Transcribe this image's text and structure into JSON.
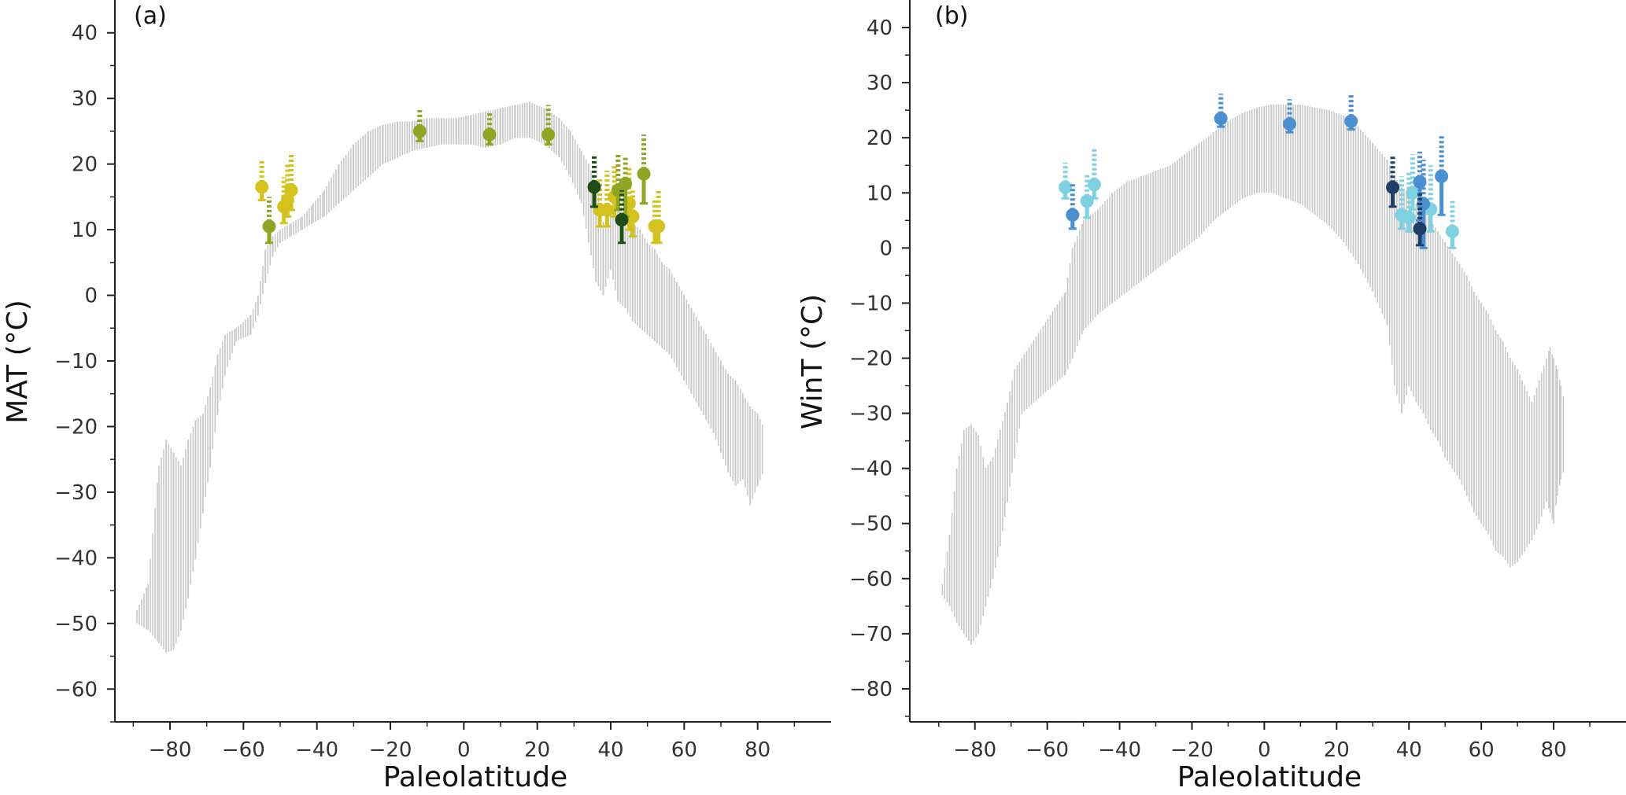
{
  "chart_data": [
    {
      "panel": "(a)",
      "type": "scatter",
      "xlabel": "Paleolatitude",
      "ylabel": "MAT (°C)",
      "xlim": [
        -95,
        100
      ],
      "ylim": [
        -65,
        45
      ],
      "xticks": [
        -80,
        -60,
        -40,
        -20,
        0,
        20,
        40,
        60,
        80
      ],
      "yticks": [
        40,
        30,
        20,
        10,
        0,
        -10,
        -20,
        -30,
        -40,
        -50,
        -60
      ],
      "xtick_labels": [
        "−80",
        "−60",
        "−40",
        "−20",
        "0",
        "20",
        "40",
        "60",
        "80"
      ],
      "ytick_labels": [
        "40",
        "30",
        "20",
        "10",
        "0",
        "−10",
        "−20",
        "−30",
        "−40",
        "−50",
        "−60"
      ],
      "grid": false,
      "model_envelope_color": "#c8c8c8",
      "model_envelope": [
        {
          "x": -89,
          "lo": -50,
          "hi": -48
        },
        {
          "x": -86,
          "lo": -51,
          "hi": -44
        },
        {
          "x": -83,
          "lo": -53,
          "hi": -26
        },
        {
          "x": -81,
          "lo": -54.5,
          "hi": -22
        },
        {
          "x": -79,
          "lo": -54,
          "hi": -24
        },
        {
          "x": -77,
          "lo": -51,
          "hi": -26
        },
        {
          "x": -75,
          "lo": -46,
          "hi": -22
        },
        {
          "x": -73,
          "lo": -40,
          "hi": -19
        },
        {
          "x": -71,
          "lo": -33,
          "hi": -18
        },
        {
          "x": -69,
          "lo": -26,
          "hi": -14
        },
        {
          "x": -67,
          "lo": -18,
          "hi": -9
        },
        {
          "x": -65,
          "lo": -12,
          "hi": -6
        },
        {
          "x": -62,
          "lo": -7,
          "hi": -5
        },
        {
          "x": -58,
          "lo": -6,
          "hi": -3
        },
        {
          "x": -56,
          "lo": -3,
          "hi": 0
        },
        {
          "x": -54,
          "lo": 2,
          "hi": 7
        },
        {
          "x": -52,
          "lo": 6,
          "hi": 9
        },
        {
          "x": -50,
          "lo": 8,
          "hi": 10
        },
        {
          "x": -47,
          "lo": 9,
          "hi": 11
        },
        {
          "x": -44,
          "lo": 10,
          "hi": 12
        },
        {
          "x": -41,
          "lo": 11,
          "hi": 14
        },
        {
          "x": -38,
          "lo": 12,
          "hi": 16
        },
        {
          "x": -34,
          "lo": 14,
          "hi": 20
        },
        {
          "x": -30,
          "lo": 16,
          "hi": 23
        },
        {
          "x": -26,
          "lo": 18,
          "hi": 25
        },
        {
          "x": -22,
          "lo": 20,
          "hi": 26
        },
        {
          "x": -18,
          "lo": 21,
          "hi": 26.5
        },
        {
          "x": -14,
          "lo": 22,
          "hi": 26.5
        },
        {
          "x": -10,
          "lo": 22.5,
          "hi": 27
        },
        {
          "x": -6,
          "lo": 23,
          "hi": 27
        },
        {
          "x": -2,
          "lo": 23,
          "hi": 27
        },
        {
          "x": 2,
          "lo": 23,
          "hi": 27.5
        },
        {
          "x": 6,
          "lo": 22.5,
          "hi": 28
        },
        {
          "x": 10,
          "lo": 23,
          "hi": 28.5
        },
        {
          "x": 14,
          "lo": 24,
          "hi": 29
        },
        {
          "x": 18,
          "lo": 24,
          "hi": 29.5
        },
        {
          "x": 22,
          "lo": 23,
          "hi": 28.5
        },
        {
          "x": 26,
          "lo": 21,
          "hi": 27
        },
        {
          "x": 29,
          "lo": 18,
          "hi": 25
        },
        {
          "x": 32,
          "lo": 14,
          "hi": 22
        },
        {
          "x": 34,
          "lo": 8,
          "hi": 20
        },
        {
          "x": 36,
          "lo": 2,
          "hi": 17
        },
        {
          "x": 38,
          "lo": 0,
          "hi": 11
        },
        {
          "x": 40,
          "lo": 4,
          "hi": 13
        },
        {
          "x": 42,
          "lo": -1,
          "hi": 13
        },
        {
          "x": 44,
          "lo": -2,
          "hi": 12
        },
        {
          "x": 46,
          "lo": -4,
          "hi": 11
        },
        {
          "x": 48,
          "lo": -5,
          "hi": 10
        },
        {
          "x": 50,
          "lo": -6,
          "hi": 8
        },
        {
          "x": 52,
          "lo": -7,
          "hi": 7
        },
        {
          "x": 54,
          "lo": -8,
          "hi": 5
        },
        {
          "x": 56,
          "lo": -9,
          "hi": 4
        },
        {
          "x": 58,
          "lo": -11,
          "hi": 2
        },
        {
          "x": 60,
          "lo": -13,
          "hi": 0
        },
        {
          "x": 62,
          "lo": -15,
          "hi": -2
        },
        {
          "x": 64,
          "lo": -17,
          "hi": -4
        },
        {
          "x": 66,
          "lo": -19,
          "hi": -6
        },
        {
          "x": 68,
          "lo": -21,
          "hi": -8
        },
        {
          "x": 70,
          "lo": -24,
          "hi": -10
        },
        {
          "x": 72,
          "lo": -27,
          "hi": -12
        },
        {
          "x": 74,
          "lo": -29,
          "hi": -13
        },
        {
          "x": 76,
          "lo": -28,
          "hi": -15
        },
        {
          "x": 78,
          "lo": -32,
          "hi": -17
        },
        {
          "x": 80,
          "lo": -29,
          "hi": -18
        },
        {
          "x": 81.5,
          "lo": -27,
          "hi": -20
        }
      ],
      "series": [
        {
          "color": "#d4c21f",
          "points": [
            {
              "x": -55,
              "y": 16.5,
              "lo": 14.5,
              "hi": 20.5
            },
            {
              "x": -49,
              "y": 13.5,
              "lo": 11,
              "hi": 18
            },
            {
              "x": -48,
              "y": 14.5,
              "lo": 12,
              "hi": 20
            },
            {
              "x": -47,
              "y": 16,
              "lo": 13,
              "hi": 21.5
            },
            {
              "x": 37,
              "y": 13,
              "lo": 10.5,
              "hi": 18
            },
            {
              "x": 39,
              "y": 13,
              "lo": 10.5,
              "hi": 19
            },
            {
              "x": 41,
              "y": 15,
              "lo": 12,
              "hi": 20
            },
            {
              "x": 45,
              "y": 14,
              "lo": 10,
              "hi": 19.5
            },
            {
              "x": 46,
              "y": 12,
              "lo": 9,
              "hi": 16
            },
            {
              "x": 52,
              "y": 10.5,
              "lo": 8,
              "hi": 14.5
            },
            {
              "x": 53,
              "y": 10.5,
              "lo": 8,
              "hi": 16
            }
          ]
        },
        {
          "color": "#8fa624",
          "points": [
            {
              "x": -53,
              "y": 10.5,
              "lo": 8,
              "hi": 15
            },
            {
              "x": -12,
              "y": 25,
              "lo": 23.5,
              "hi": 28.5
            },
            {
              "x": 7,
              "y": 24.5,
              "lo": 23,
              "hi": 28
            },
            {
              "x": 23,
              "y": 24.5,
              "lo": 23,
              "hi": 29
            },
            {
              "x": 42,
              "y": 16,
              "lo": 13,
              "hi": 21.5
            },
            {
              "x": 44,
              "y": 17,
              "lo": 12,
              "hi": 21
            },
            {
              "x": 49,
              "y": 18.5,
              "lo": 14,
              "hi": 24.5
            }
          ]
        },
        {
          "color": "#1e4d16",
          "points": [
            {
              "x": 35.5,
              "y": 16.5,
              "lo": 13.5,
              "hi": 21.5
            },
            {
              "x": 43,
              "y": 11.5,
              "lo": 8,
              "hi": 16
            }
          ]
        }
      ]
    },
    {
      "panel": "(b)",
      "type": "scatter",
      "xlabel": "Paleolatitude",
      "ylabel": "WinT (°C)",
      "xlim": [
        -98,
        100
      ],
      "ylim": [
        -86,
        45
      ],
      "xticks": [
        -80,
        -60,
        -40,
        -20,
        0,
        20,
        40,
        60,
        80
      ],
      "yticks": [
        40,
        30,
        20,
        10,
        0,
        -10,
        -20,
        -30,
        -40,
        -50,
        -60,
        -70,
        -80
      ],
      "xtick_labels": [
        "−80",
        "−60",
        "−40",
        "−20",
        "0",
        "20",
        "40",
        "60",
        "80"
      ],
      "ytick_labels": [
        "40",
        "30",
        "20",
        "10",
        "0",
        "−10",
        "−20",
        "−30",
        "−40",
        "−50",
        "−60",
        "−70",
        "−80"
      ],
      "grid": false,
      "model_envelope_color": "#c8c8c8",
      "model_envelope": [
        {
          "x": -89,
          "lo": -63,
          "hi": -61
        },
        {
          "x": -87,
          "lo": -65,
          "hi": -52
        },
        {
          "x": -85,
          "lo": -68,
          "hi": -40
        },
        {
          "x": -83,
          "lo": -70,
          "hi": -33
        },
        {
          "x": -81,
          "lo": -72,
          "hi": -32
        },
        {
          "x": -79,
          "lo": -70,
          "hi": -34
        },
        {
          "x": -77,
          "lo": -65,
          "hi": -40
        },
        {
          "x": -75,
          "lo": -60,
          "hi": -38
        },
        {
          "x": -73,
          "lo": -54,
          "hi": -33
        },
        {
          "x": -71,
          "lo": -46,
          "hi": -28
        },
        {
          "x": -69,
          "lo": -38,
          "hi": -22
        },
        {
          "x": -67,
          "lo": -30,
          "hi": -20
        },
        {
          "x": -55,
          "lo": -23,
          "hi": -8
        },
        {
          "x": -53,
          "lo": -20,
          "hi": 0
        },
        {
          "x": -50,
          "lo": -15,
          "hi": 5
        },
        {
          "x": -46,
          "lo": -12,
          "hi": 7
        },
        {
          "x": -42,
          "lo": -10,
          "hi": 10
        },
        {
          "x": -38,
          "lo": -8,
          "hi": 12
        },
        {
          "x": -34,
          "lo": -6,
          "hi": 13
        },
        {
          "x": -30,
          "lo": -4,
          "hi": 14
        },
        {
          "x": -26,
          "lo": -2,
          "hi": 15
        },
        {
          "x": -22,
          "lo": 0,
          "hi": 17
        },
        {
          "x": -18,
          "lo": 2,
          "hi": 19
        },
        {
          "x": -14,
          "lo": 5,
          "hi": 21
        },
        {
          "x": -10,
          "lo": 7,
          "hi": 23
        },
        {
          "x": -6,
          "lo": 9,
          "hi": 24.5
        },
        {
          "x": -2,
          "lo": 10,
          "hi": 25.5
        },
        {
          "x": 2,
          "lo": 10,
          "hi": 26
        },
        {
          "x": 6,
          "lo": 9,
          "hi": 26
        },
        {
          "x": 10,
          "lo": 8,
          "hi": 26
        },
        {
          "x": 14,
          "lo": 6,
          "hi": 25.5
        },
        {
          "x": 18,
          "lo": 4,
          "hi": 25
        },
        {
          "x": 22,
          "lo": 1,
          "hi": 24
        },
        {
          "x": 26,
          "lo": -3,
          "hi": 22
        },
        {
          "x": 30,
          "lo": -8,
          "hi": 19
        },
        {
          "x": 34,
          "lo": -14,
          "hi": 16
        },
        {
          "x": 36,
          "lo": -25,
          "hi": 13
        },
        {
          "x": 38,
          "lo": -30,
          "hi": 11
        },
        {
          "x": 40,
          "lo": -25,
          "hi": 10
        },
        {
          "x": 42,
          "lo": -28,
          "hi": 8
        },
        {
          "x": 44,
          "lo": -30,
          "hi": 7
        },
        {
          "x": 46,
          "lo": -33,
          "hi": 5
        },
        {
          "x": 48,
          "lo": -35,
          "hi": 3
        },
        {
          "x": 50,
          "lo": -38,
          "hi": 1
        },
        {
          "x": 52,
          "lo": -40,
          "hi": -1
        },
        {
          "x": 54,
          "lo": -42,
          "hi": -3
        },
        {
          "x": 56,
          "lo": -45,
          "hi": -5
        },
        {
          "x": 58,
          "lo": -48,
          "hi": -8
        },
        {
          "x": 60,
          "lo": -50,
          "hi": -10
        },
        {
          "x": 62,
          "lo": -52,
          "hi": -12
        },
        {
          "x": 64,
          "lo": -55,
          "hi": -15
        },
        {
          "x": 66,
          "lo": -56,
          "hi": -17
        },
        {
          "x": 68,
          "lo": -58,
          "hi": -20
        },
        {
          "x": 70,
          "lo": -57,
          "hi": -22
        },
        {
          "x": 72,
          "lo": -55,
          "hi": -25
        },
        {
          "x": 74,
          "lo": -53,
          "hi": -28
        },
        {
          "x": 76,
          "lo": -50,
          "hi": -24
        },
        {
          "x": 78,
          "lo": -46,
          "hi": -20
        },
        {
          "x": 79,
          "lo": -48,
          "hi": -18
        },
        {
          "x": 80,
          "lo": -50,
          "hi": -20
        },
        {
          "x": 81,
          "lo": -45,
          "hi": -22
        },
        {
          "x": 82,
          "lo": -42,
          "hi": -25
        },
        {
          "x": 83,
          "lo": -40,
          "hi": -28
        }
      ],
      "series": [
        {
          "color": "#7fd0e0",
          "points": [
            {
              "x": -55,
              "y": 11,
              "lo": 9,
              "hi": 15.5
            },
            {
              "x": -49,
              "y": 8.5,
              "lo": 5.5,
              "hi": 13.5
            },
            {
              "x": -47,
              "y": 11.5,
              "lo": 9,
              "hi": 18
            },
            {
              "x": 38,
              "y": 6,
              "lo": 3.5,
              "hi": 13
            },
            {
              "x": 40,
              "y": 5.5,
              "lo": 3,
              "hi": 14
            },
            {
              "x": 41,
              "y": 10,
              "lo": 7,
              "hi": 17
            },
            {
              "x": 46,
              "y": 7,
              "lo": 3,
              "hi": 15
            },
            {
              "x": 52,
              "y": 3,
              "lo": 0,
              "hi": 8.5
            }
          ]
        },
        {
          "color": "#4a8fd0",
          "points": [
            {
              "x": -53,
              "y": 6,
              "lo": 3.5,
              "hi": 12
            },
            {
              "x": -12,
              "y": 23.5,
              "lo": 22,
              "hi": 28
            },
            {
              "x": 7,
              "y": 22.5,
              "lo": 21,
              "hi": 27
            },
            {
              "x": 24,
              "y": 23,
              "lo": 21.5,
              "hi": 28
            },
            {
              "x": 43,
              "y": 12,
              "lo": 5,
              "hi": 17.5
            },
            {
              "x": 44,
              "y": 8,
              "lo": 0,
              "hi": 16
            },
            {
              "x": 49,
              "y": 13,
              "lo": 6,
              "hi": 20.5
            }
          ]
        },
        {
          "color": "#1f3f66",
          "points": [
            {
              "x": 35.5,
              "y": 11,
              "lo": 7.5,
              "hi": 17
            },
            {
              "x": 43,
              "y": 3.5,
              "lo": 0.5,
              "hi": 10
            }
          ]
        }
      ]
    }
  ]
}
